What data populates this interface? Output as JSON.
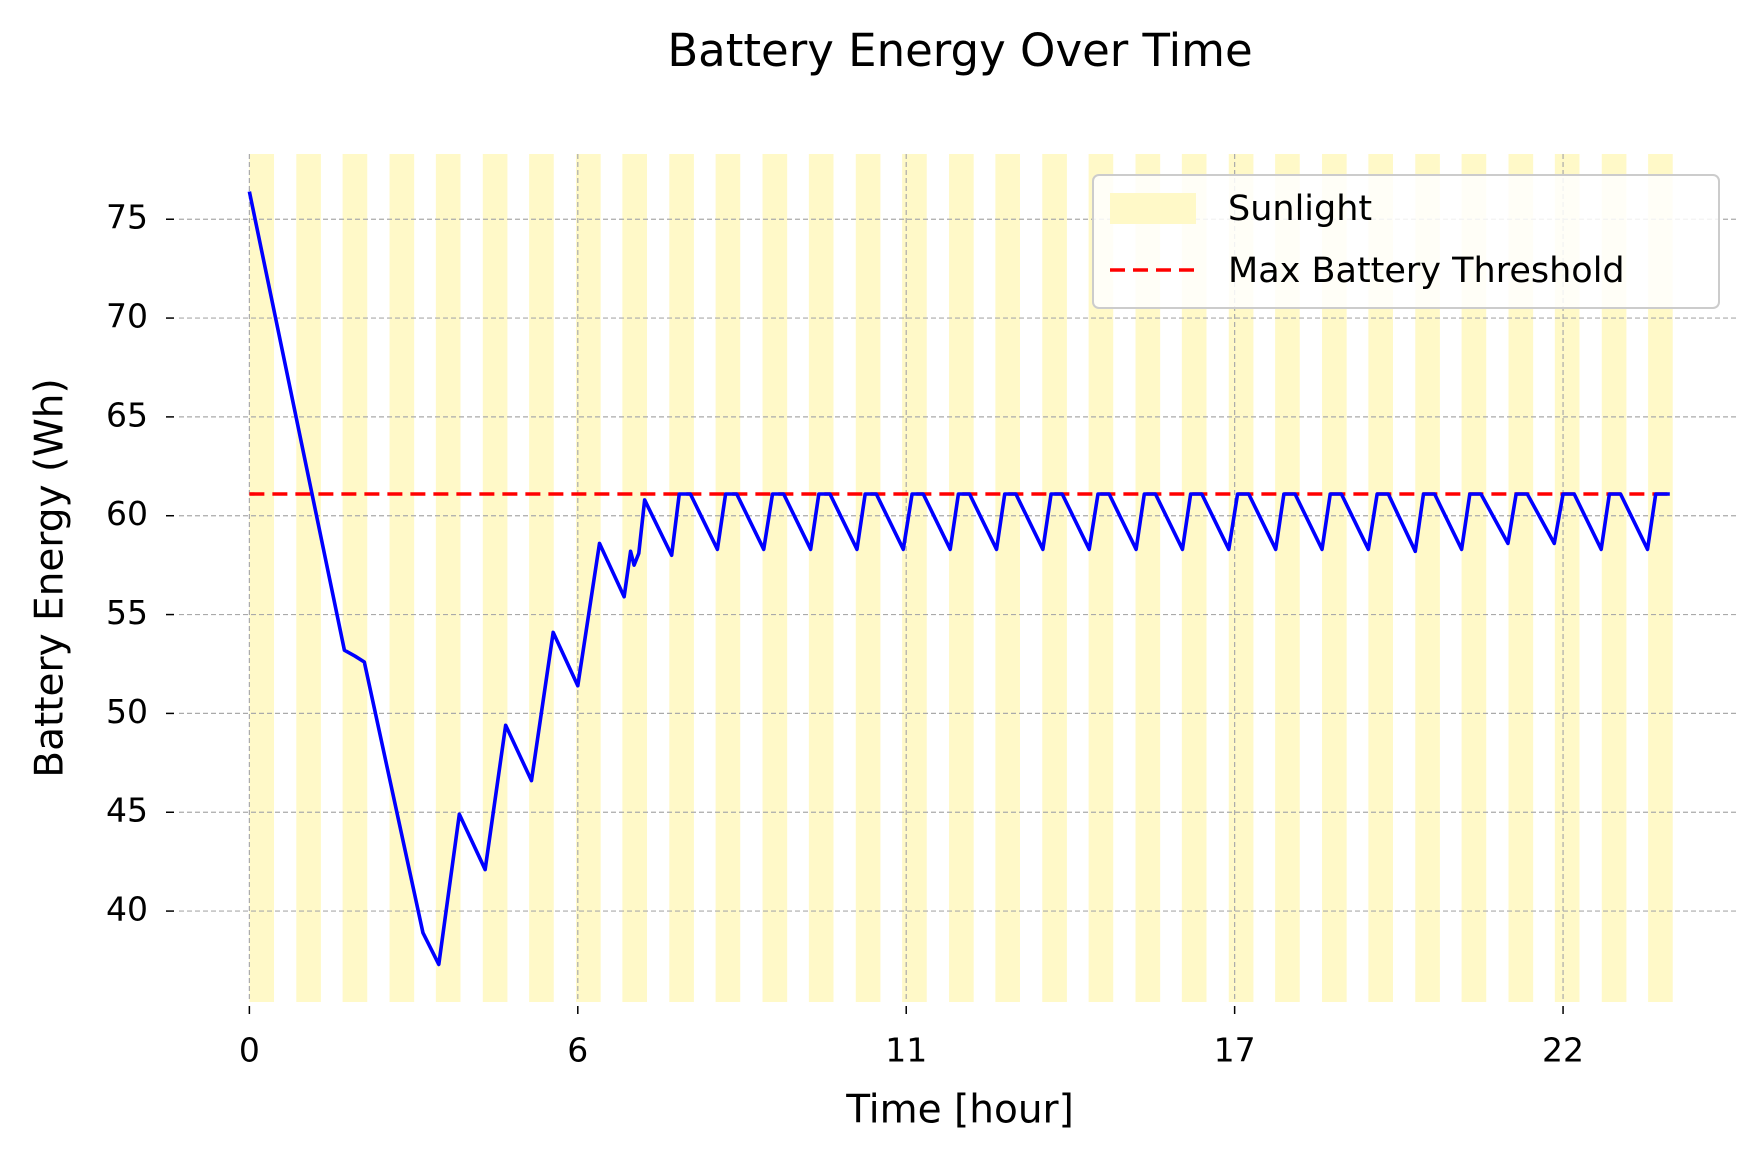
{
  "chart_data": {
    "type": "line",
    "title": "Battery Energy Over Time",
    "xlabel": "Time [hour]",
    "ylabel": "Battery Energy (Wh)",
    "xlim": [
      -1.2,
      25.4
    ],
    "ylim": [
      35.4,
      78.3
    ],
    "xticks": [
      0,
      {
        "value": 5.6,
        "label": "6"
      },
      {
        "value": 11.2,
        "label": "11"
      },
      {
        "value": 16.8,
        "label": "17"
      },
      {
        "value": 22.4,
        "label": "22"
      }
    ],
    "yticks": [
      40,
      45,
      50,
      55,
      60,
      65,
      70,
      75
    ],
    "grid": true,
    "legend": "upper right",
    "sunlight": {
      "name": "Sunlight",
      "color": "#fff9c8",
      "intervals": [
        [
          0,
          0.42
        ],
        [
          0.8,
          1.22
        ],
        [
          1.59,
          2.01
        ],
        [
          2.39,
          2.81
        ],
        [
          3.18,
          3.6
        ],
        [
          3.98,
          4.4
        ],
        [
          4.77,
          5.19
        ],
        [
          5.57,
          5.99
        ],
        [
          6.36,
          6.78
        ],
        [
          7.16,
          7.58
        ],
        [
          7.95,
          8.37
        ],
        [
          8.75,
          9.17
        ],
        [
          9.54,
          9.96
        ],
        [
          10.34,
          10.76
        ],
        [
          11.13,
          11.55
        ],
        [
          11.93,
          12.35
        ],
        [
          12.72,
          13.14
        ],
        [
          13.52,
          13.94
        ],
        [
          14.31,
          14.73
        ],
        [
          15.11,
          15.53
        ],
        [
          15.9,
          16.32
        ],
        [
          16.7,
          17.12
        ],
        [
          17.49,
          17.91
        ],
        [
          18.29,
          18.71
        ],
        [
          19.08,
          19.5
        ],
        [
          19.88,
          20.3
        ],
        [
          20.67,
          21.09
        ],
        [
          21.47,
          21.89
        ],
        [
          22.26,
          22.68
        ],
        [
          23.06,
          23.48
        ],
        [
          23.85,
          24.27
        ]
      ]
    },
    "threshold": {
      "name": "Max Battery Threshold",
      "color": "#ff0000",
      "value": 61.1
    },
    "x": [
      0,
      1.62,
      1.8,
      1.96,
      2.96,
      3.23,
      3.58,
      4.02,
      4.37,
      4.81,
      5.18,
      5.6,
      5.97,
      6.39,
      6.5,
      6.56,
      6.64,
      6.74,
      7.2,
      7.33,
      7.52,
      7.98,
      8.12,
      8.31,
      8.77,
      8.92,
      9.11,
      9.57,
      9.71,
      9.9,
      10.36,
      10.5,
      10.69,
      11.15,
      11.3,
      11.49,
      11.95,
      12.09,
      12.28,
      12.74,
      12.88,
      13.07,
      13.53,
      13.67,
      13.86,
      14.32,
      14.47,
      14.66,
      15.12,
      15.26,
      15.45,
      15.91,
      16.05,
      16.24,
      16.7,
      16.85,
      17.04,
      17.5,
      17.64,
      17.83,
      18.29,
      18.43,
      18.62,
      19.08,
      19.23,
      19.42,
      19.88,
      20.02,
      20.21,
      20.67,
      20.81,
      21.0,
      21.46,
      21.6,
      21.79,
      22.25,
      22.4,
      22.59,
      23.05,
      23.19,
      23.38,
      23.84,
      23.98,
      24.22
    ],
    "series": [
      {
        "color": "#0000ff",
        "values": [
          76.4,
          53.2,
          52.9,
          52.6,
          38.9,
          37.3,
          44.9,
          42.1,
          49.4,
          46.6,
          54.1,
          51.4,
          58.6,
          55.9,
          58.2,
          57.5,
          58.1,
          60.8,
          58.0,
          61.1,
          61.1,
          58.3,
          61.1,
          61.1,
          58.3,
          61.1,
          61.1,
          58.3,
          61.1,
          61.1,
          58.3,
          61.1,
          61.1,
          58.3,
          61.1,
          61.1,
          58.3,
          61.1,
          61.1,
          58.3,
          61.1,
          61.1,
          58.3,
          61.1,
          61.1,
          58.3,
          61.1,
          61.1,
          58.3,
          61.1,
          61.1,
          58.3,
          61.1,
          61.1,
          58.3,
          61.1,
          61.1,
          58.3,
          61.1,
          61.1,
          58.3,
          61.1,
          61.1,
          58.3,
          61.1,
          61.1,
          58.2,
          61.1,
          61.1,
          58.3,
          61.1,
          61.1,
          58.6,
          61.1,
          61.1,
          58.6,
          61.1,
          61.1,
          58.3,
          61.1,
          61.1,
          58.3,
          61.1,
          61.1
        ]
      }
    ]
  }
}
